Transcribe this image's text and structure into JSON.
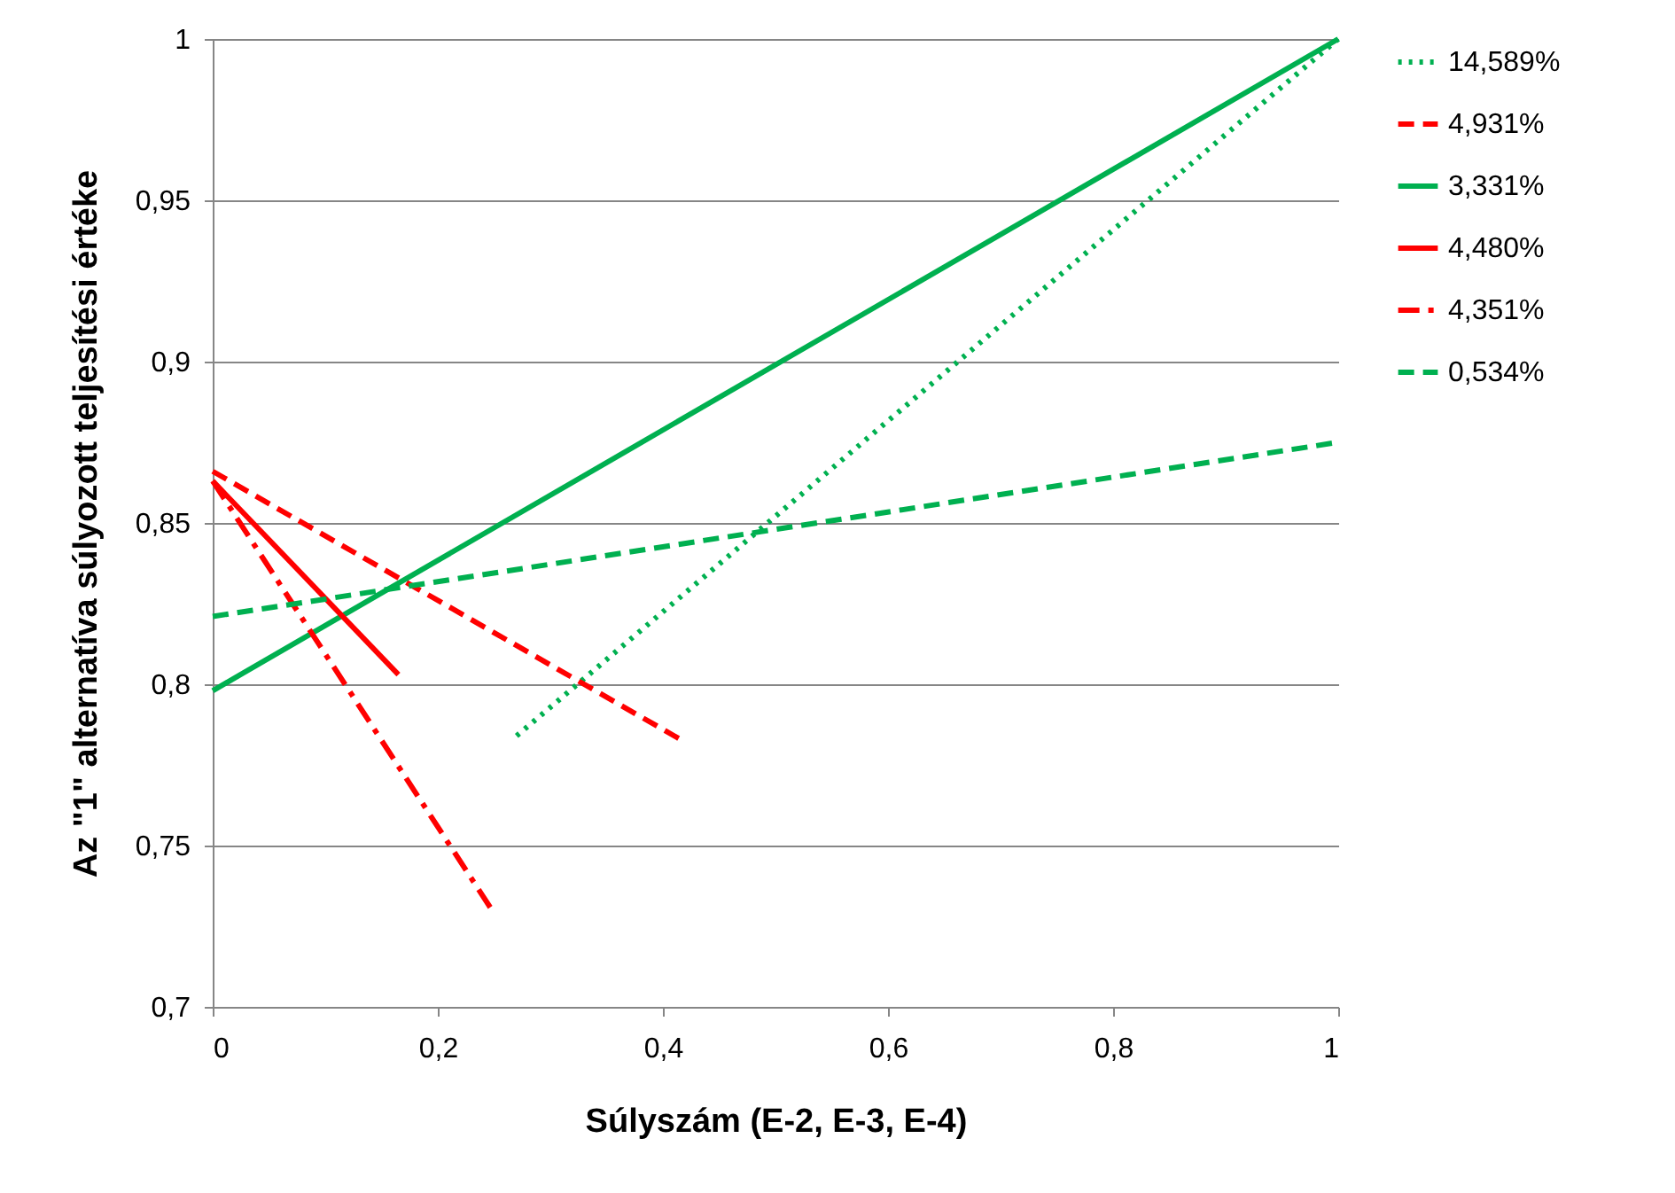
{
  "chart_data": {
    "type": "line",
    "xlabel": "Súlyszám (E-2, E-3, E-4)",
    "ylabel": "Az \"1\" alternatíva súlyozott teljesítési értéke",
    "xlim": [
      0,
      1
    ],
    "ylim": [
      0.7,
      1
    ],
    "xticks": [
      0,
      {
        "value": 0.2,
        "label": "0,2"
      },
      {
        "value": 0.4,
        "label": "0,4"
      },
      {
        "value": 0.6,
        "label": "0,6"
      },
      {
        "value": 0.8,
        "label": "0,8"
      },
      1
    ],
    "yticks": [
      {
        "value": 0.7,
        "label": "0,7"
      },
      {
        "value": 0.75,
        "label": "0,75"
      },
      {
        "value": 0.8,
        "label": "0,8"
      },
      {
        "value": 0.85,
        "label": "0,85"
      },
      {
        "value": 0.9,
        "label": "0,9"
      },
      {
        "value": 0.95,
        "label": "0,95"
      },
      1
    ],
    "grid": "y",
    "legend": "right",
    "marker": "none",
    "series": [
      {
        "name": "14,589%",
        "color": "#00b050",
        "line_style": "dotted",
        "x": [
          0.27,
          1
        ],
        "values": [
          0.784,
          1
        ]
      },
      {
        "name": "4,931%",
        "color": "#ff0000",
        "line_style": "dashed",
        "x": [
          0,
          0.42
        ],
        "values": [
          0.866,
          0.782
        ]
      },
      {
        "name": "3,331%",
        "color": "#00b050",
        "line_style": "solid",
        "x": [
          0,
          1
        ],
        "values": [
          0.798,
          1
        ]
      },
      {
        "name": "4,480%",
        "color": "#ff0000",
        "line_style": "solid",
        "x": [
          0,
          0.165
        ],
        "values": [
          0.863,
          0.803
        ]
      },
      {
        "name": "4,351%",
        "color": "#ff0000",
        "line_style": "dashdot",
        "x": [
          0,
          0.25
        ],
        "values": [
          0.863,
          0.729
        ]
      },
      {
        "name": "0,534%",
        "color": "#00b050",
        "line_style": "dashed",
        "x": [
          0,
          1
        ],
        "values": [
          0.821,
          0.875
        ]
      }
    ]
  }
}
